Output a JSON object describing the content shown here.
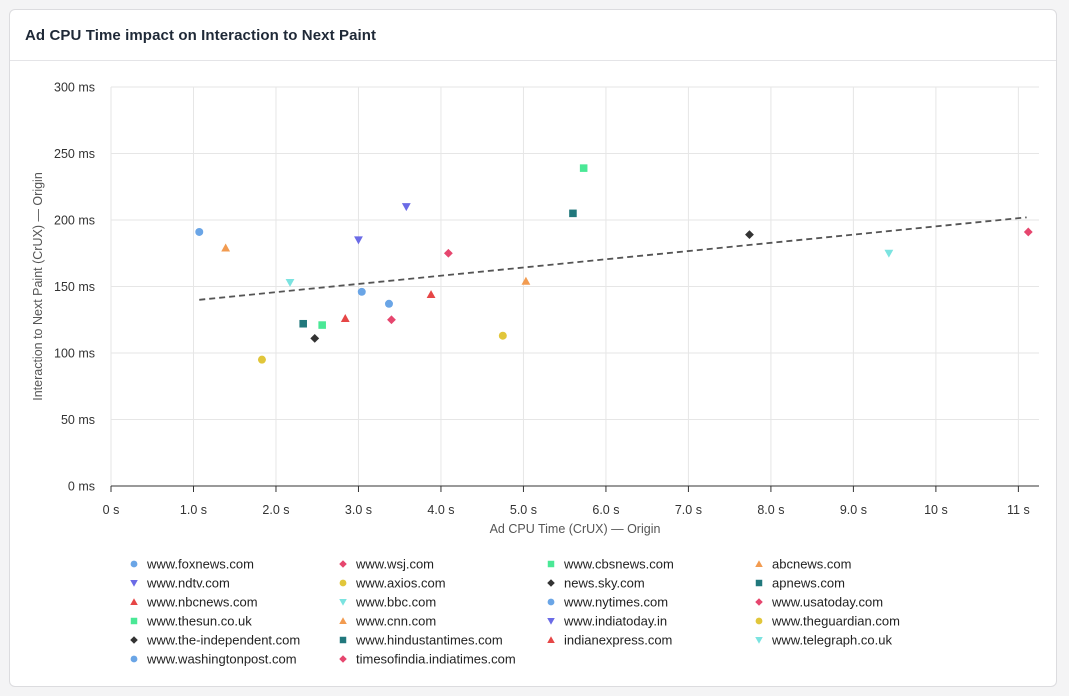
{
  "card": {
    "title": "Ad CPU Time impact on Interaction to Next Paint"
  },
  "chart_data": {
    "type": "scatter",
    "title": "Ad CPU Time impact on Interaction to Next Paint",
    "xlabel": "Ad CPU Time (CrUX) — Origin",
    "ylabel": "Interaction to Next Paint (CrUX) — Origin",
    "xlim": [
      0,
      11.25
    ],
    "ylim": [
      0,
      300
    ],
    "x_ticks": [
      0,
      1,
      2,
      3,
      4,
      5,
      6,
      7,
      8,
      9,
      10,
      11
    ],
    "x_tick_labels": [
      "0 s",
      "1.0 s",
      "2.0 s",
      "3.0 s",
      "4.0 s",
      "5.0 s",
      "6.0 s",
      "7.0 s",
      "8.0 s",
      "9.0 s",
      "10 s",
      "11 s"
    ],
    "y_ticks": [
      0,
      50,
      100,
      150,
      200,
      250,
      300
    ],
    "y_tick_labels": [
      "0 ms",
      "50 ms",
      "100 ms",
      "150 ms",
      "200 ms",
      "250 ms",
      "300 ms"
    ],
    "grid": true,
    "legend_position": "bottom",
    "trendline": {
      "style": "dashed",
      "color": "#555555",
      "x": [
        1.07,
        11.1
      ],
      "y": [
        140,
        202
      ]
    },
    "series": [
      {
        "name": "www.foxnews.com",
        "marker": "circle",
        "color": "#6aa5e6",
        "x": 1.07,
        "y": 191
      },
      {
        "name": "www.wsj.com",
        "marker": "diamond",
        "color": "#e6466e",
        "x": 11.12,
        "y": 191
      },
      {
        "name": "www.cbsnews.com",
        "marker": "square",
        "color": "#4ae896",
        "x": 5.73,
        "y": 239
      },
      {
        "name": "abcnews.com",
        "marker": "triangle-up",
        "color": "#f29b50",
        "x": 1.39,
        "y": 179
      },
      {
        "name": "www.ndtv.com",
        "marker": "triangle-down",
        "color": "#6b6be6",
        "x": 3.0,
        "y": 185
      },
      {
        "name": "www.axios.com",
        "marker": "circle",
        "color": "#e1c63a",
        "x": 4.75,
        "y": 113
      },
      {
        "name": "news.sky.com",
        "marker": "diamond",
        "color": "#333333",
        "x": 7.74,
        "y": 189
      },
      {
        "name": "apnews.com",
        "marker": "square",
        "color": "#21787c",
        "x": 5.6,
        "y": 205
      },
      {
        "name": "www.nbcnews.com",
        "marker": "triangle-up",
        "color": "#e64646",
        "x": 2.84,
        "y": 126
      },
      {
        "name": "www.bbc.com",
        "marker": "triangle-down",
        "color": "#7be3e0",
        "x": 2.17,
        "y": 153
      },
      {
        "name": "www.nytimes.com",
        "marker": "circle",
        "color": "#6aa5e6",
        "x": 3.04,
        "y": 146
      },
      {
        "name": "www.usatoday.com",
        "marker": "diamond",
        "color": "#e6466e",
        "x": 3.4,
        "y": 125
      },
      {
        "name": "www.thesun.co.uk",
        "marker": "square",
        "color": "#4ae896",
        "x": 2.56,
        "y": 121
      },
      {
        "name": "www.cnn.com",
        "marker": "triangle-up",
        "color": "#f29b50",
        "x": 5.03,
        "y": 154
      },
      {
        "name": "www.indiatoday.in",
        "marker": "triangle-down",
        "color": "#6b6be6",
        "x": 3.58,
        "y": 210
      },
      {
        "name": "www.theguardian.com",
        "marker": "circle",
        "color": "#e1c63a",
        "x": 1.83,
        "y": 95
      },
      {
        "name": "www.the-independent.com",
        "marker": "diamond",
        "color": "#333333",
        "x": 2.47,
        "y": 111
      },
      {
        "name": "www.hindustantimes.com",
        "marker": "square",
        "color": "#21787c",
        "x": 2.33,
        "y": 122
      },
      {
        "name": "indianexpress.com",
        "marker": "triangle-up",
        "color": "#e64646",
        "x": 3.88,
        "y": 144
      },
      {
        "name": "www.telegraph.co.uk",
        "marker": "triangle-down",
        "color": "#7be3e0",
        "x": 9.43,
        "y": 175
      },
      {
        "name": "www.washingtonpost.com",
        "marker": "circle",
        "color": "#6aa5e6",
        "x": 3.37,
        "y": 137
      },
      {
        "name": "timesofindia.indiatimes.com",
        "marker": "diamond",
        "color": "#e6466e",
        "x": 4.09,
        "y": 175
      }
    ]
  }
}
